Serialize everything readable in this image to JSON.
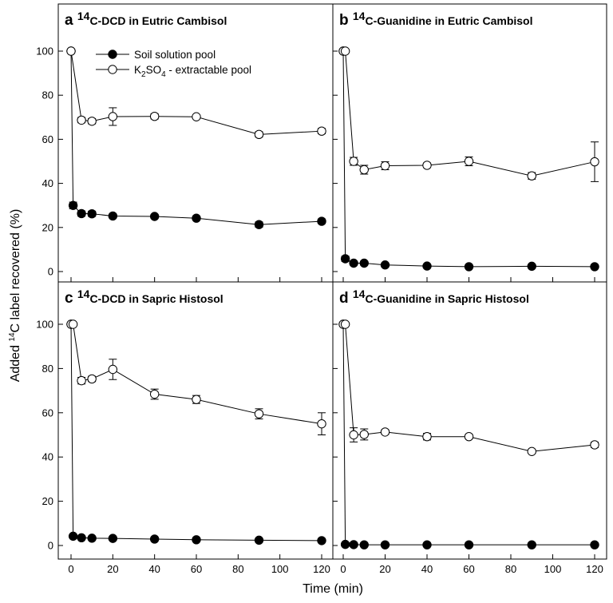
{
  "figure": {
    "xlabel": "Time (min)",
    "ylabel_pre": "Added ",
    "ylabel_sup": "14",
    "ylabel_post": "C label recovered (%)"
  },
  "legend": {
    "items": [
      {
        "text": "Soil solution pool",
        "marker": "filled"
      },
      {
        "pre": "K",
        "sub1": "2",
        "mid": "SO",
        "sub2": "4",
        "post": " - extractable pool",
        "marker": "open"
      }
    ]
  },
  "colors": {
    "axis": "#000000",
    "filled_marker": "#000000",
    "open_marker_fill": "#ffffff",
    "background": "#ffffff"
  },
  "chart_data": [
    {
      "type": "line",
      "letter": "a",
      "title_sup": "14",
      "title_rest": "C-DCD in Eutric Cambisol",
      "xlim": [
        -5,
        125
      ],
      "ylim": [
        -10,
        112
      ],
      "xticks": [
        0,
        20,
        40,
        60,
        80,
        100,
        120
      ],
      "yticks": [
        0,
        20,
        40,
        60,
        80,
        100
      ],
      "x": [
        0,
        5,
        10,
        20,
        40,
        60,
        90,
        120
      ],
      "series": [
        {
          "name": "Soil solution pool",
          "marker": "filled",
          "values": [
            100,
            30,
            26.3,
            26.2,
            25.2,
            25,
            24.2,
            21.3,
            22.8
          ],
          "x": [
            0,
            1,
            5,
            10,
            20,
            40,
            60,
            90,
            120
          ],
          "errors": [
            0,
            1.5,
            1.2,
            1.2,
            0.8,
            0.8,
            0.8,
            1.2,
            1.0
          ]
        },
        {
          "name": "K2SO4 - extractable pool",
          "marker": "open",
          "values": [
            100,
            68.7,
            68.2,
            70.3,
            70.4,
            70.2,
            62.2,
            63.7
          ],
          "errors": [
            0,
            1.2,
            1.2,
            4.0,
            1.2,
            0.8,
            1.2,
            1.2
          ]
        }
      ]
    },
    {
      "type": "line",
      "letter": "b",
      "title_sup": "14",
      "title_rest": "C-Guanidine in Eutric Cambisol",
      "xlim": [
        -5,
        125
      ],
      "ylim": [
        -10,
        112
      ],
      "xticks": [
        0,
        20,
        40,
        60,
        80,
        100,
        120
      ],
      "yticks": [
        0,
        20,
        40,
        60,
        80,
        100
      ],
      "x": [
        0,
        1,
        5,
        10,
        20,
        40,
        60,
        90,
        120
      ],
      "series": [
        {
          "name": "Soil solution pool",
          "marker": "filled",
          "values": [
            100,
            5.8,
            3.8,
            3.8,
            3.0,
            2.5,
            2.2,
            2.4,
            2.2
          ],
          "errors": [
            0,
            1.2,
            0.8,
            0.8,
            0.5,
            0.4,
            0.4,
            0.4,
            0.4
          ]
        },
        {
          "name": "K2SO4 - extractable pool",
          "marker": "open",
          "values": [
            100,
            100,
            50,
            46.2,
            48.0,
            48.2,
            50.0,
            43.4,
            49.8
          ],
          "errors": [
            0,
            0,
            1.8,
            2.0,
            1.8,
            1.0,
            2.0,
            1.5,
            9.0
          ]
        }
      ]
    },
    {
      "type": "line",
      "letter": "c",
      "title_sup": "14",
      "title_rest": "C-DCD in Sapric Histosol",
      "xlim": [
        -5,
        125
      ],
      "ylim": [
        -5,
        112
      ],
      "xticks": [
        0,
        20,
        40,
        60,
        80,
        100,
        120
      ],
      "yticks": [
        0,
        20,
        40,
        60,
        80,
        100
      ],
      "x": [
        0,
        1,
        5,
        10,
        20,
        40,
        60,
        90,
        120
      ],
      "series": [
        {
          "name": "Soil solution pool",
          "marker": "filled",
          "values": [
            100,
            4.2,
            3.5,
            3.3,
            3.2,
            2.9,
            2.6,
            2.4,
            2.2
          ],
          "errors": [
            0,
            0.6,
            0.5,
            0.5,
            0.5,
            0.4,
            0.4,
            0.4,
            0.4
          ]
        },
        {
          "name": "K2SO4 - extractable pool",
          "marker": "open",
          "values": [
            100,
            100,
            74.5,
            75.3,
            79.6,
            68.4,
            66.0,
            59.5,
            55.0
          ],
          "errors": [
            0,
            0,
            1.5,
            1.2,
            4.6,
            2.3,
            1.8,
            2.3,
            5.0
          ]
        }
      ]
    },
    {
      "type": "line",
      "letter": "d",
      "title_sup": "14",
      "title_rest": "C-Guanidine in Sapric Histosol",
      "xlim": [
        -5,
        125
      ],
      "ylim": [
        -5,
        112
      ],
      "xticks": [
        0,
        20,
        40,
        60,
        80,
        100,
        120
      ],
      "yticks": [
        0,
        20,
        40,
        60,
        80,
        100
      ],
      "x": [
        0,
        1,
        5,
        10,
        20,
        40,
        60,
        90,
        120
      ],
      "series": [
        {
          "name": "Soil solution pool",
          "marker": "filled",
          "values": [
            100,
            0.5,
            0.4,
            0.3,
            0.3,
            0.3,
            0.3,
            0.3,
            0.3
          ],
          "errors": [
            0,
            0.2,
            0.2,
            0.2,
            0.2,
            0.2,
            0.2,
            0.2,
            0.2
          ]
        },
        {
          "name": "K2SO4 - extractable pool",
          "marker": "open",
          "values": [
            100,
            100,
            50,
            50.2,
            51.3,
            49.2,
            49.2,
            42.5,
            45.5
          ],
          "errors": [
            0,
            0,
            3.2,
            2.5,
            1.0,
            1.5,
            1.0,
            0.8,
            1.2
          ]
        }
      ]
    }
  ]
}
